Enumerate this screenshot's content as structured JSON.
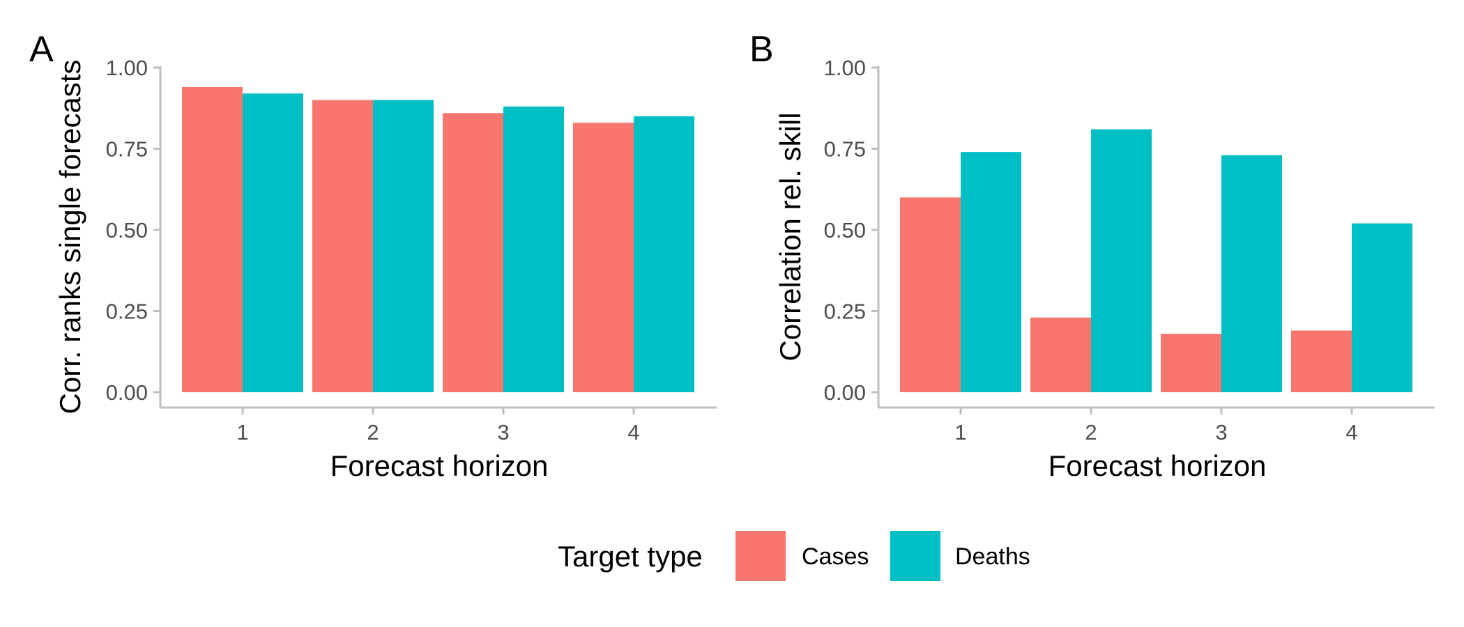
{
  "chart_data": [
    {
      "type": "bar",
      "panel": "A",
      "xlabel": "Forecast horizon",
      "ylabel": "Corr. ranks single forecasts",
      "categories": [
        "1",
        "2",
        "3",
        "4"
      ],
      "ylim": [
        0,
        1
      ],
      "yticks": [
        "0.00",
        "0.25",
        "0.50",
        "0.75",
        "1.00"
      ],
      "grid": false,
      "series": [
        {
          "name": "Cases",
          "values": [
            0.94,
            0.9,
            0.86,
            0.83
          ],
          "color": "#F8766D"
        },
        {
          "name": "Deaths",
          "values": [
            0.92,
            0.9,
            0.88,
            0.85
          ],
          "color": "#00BFC4"
        }
      ]
    },
    {
      "type": "bar",
      "panel": "B",
      "xlabel": "Forecast horizon",
      "ylabel": "Correlation rel. skill",
      "categories": [
        "1",
        "2",
        "3",
        "4"
      ],
      "ylim": [
        0,
        1
      ],
      "yticks": [
        "0.00",
        "0.25",
        "0.50",
        "0.75",
        "1.00"
      ],
      "grid": false,
      "series": [
        {
          "name": "Cases",
          "values": [
            0.6,
            0.23,
            0.18,
            0.19
          ],
          "color": "#F8766D"
        },
        {
          "name": "Deaths",
          "values": [
            0.74,
            0.81,
            0.73,
            0.52
          ],
          "color": "#00BFC4"
        }
      ]
    }
  ],
  "legend": {
    "title": "Target type",
    "placement": "bottom",
    "items": [
      {
        "label": "Cases",
        "color": "#F8766D"
      },
      {
        "label": "Deaths",
        "color": "#00BFC4"
      }
    ]
  }
}
